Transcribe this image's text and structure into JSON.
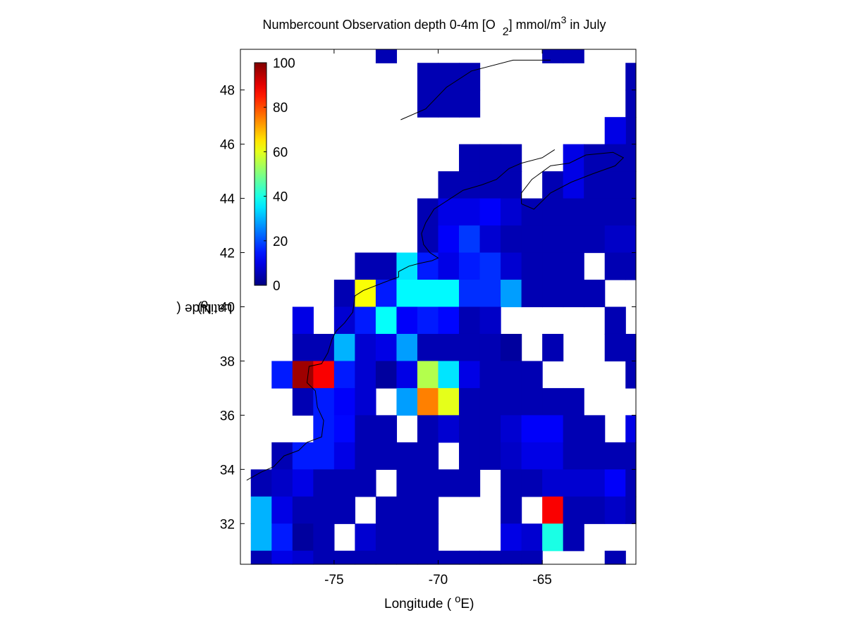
{
  "title": {
    "main": "Numbercount Observation depth 0-4m [O",
    "sub": "2",
    "after": "] mmol/m",
    "sup": "3",
    "end": " in July"
  },
  "axes": {
    "xlabel_pre": "Longitude (",
    "xlabel_deg": "o",
    "xlabel_post": "E)",
    "ylabel_pre": "Latitude (",
    "ylabel_deg": "o",
    "ylabel_post": "N)"
  },
  "chart_data": {
    "type": "heatmap",
    "colormap": "jet",
    "xlim": [
      -79.5,
      -60.5
    ],
    "ylim": [
      30.5,
      49.5
    ],
    "xticks": [
      -75,
      -70,
      -65
    ],
    "yticks": [
      32,
      34,
      36,
      38,
      40,
      42,
      44,
      46,
      48
    ],
    "cell_size_deg": 1,
    "colorbar": {
      "min": 0,
      "max": 100,
      "ticks": [
        0,
        20,
        40,
        60,
        80,
        100
      ],
      "placement": "top-left inside axes"
    },
    "cells": [
      {
        "lon": -73,
        "lat": 49,
        "v": 5
      },
      {
        "lon": -65,
        "lat": 49,
        "v": 5
      },
      {
        "lon": -64,
        "lat": 49,
        "v": 5
      },
      {
        "lon": -71,
        "lat": 48,
        "v": 5
      },
      {
        "lon": -70,
        "lat": 48,
        "v": 5
      },
      {
        "lon": -69,
        "lat": 48,
        "v": 5
      },
      {
        "lon": -61,
        "lat": 48,
        "v": 5
      },
      {
        "lon": -71,
        "lat": 47,
        "v": 5
      },
      {
        "lon": -70,
        "lat": 47,
        "v": 5
      },
      {
        "lon": -69,
        "lat": 47,
        "v": 5
      },
      {
        "lon": -61,
        "lat": 47,
        "v": 5
      },
      {
        "lon": -61,
        "lat": 46,
        "v": 5
      },
      {
        "lon": -62,
        "lat": 46,
        "v": 10
      },
      {
        "lon": -69,
        "lat": 45,
        "v": 5
      },
      {
        "lon": -68,
        "lat": 45,
        "v": 5
      },
      {
        "lon": -67,
        "lat": 45,
        "v": 5
      },
      {
        "lon": -64,
        "lat": 45,
        "v": 10
      },
      {
        "lon": -63,
        "lat": 45,
        "v": 5
      },
      {
        "lon": -62,
        "lat": 45,
        "v": 5
      },
      {
        "lon": -61,
        "lat": 45,
        "v": 5
      },
      {
        "lon": -70,
        "lat": 44,
        "v": 5
      },
      {
        "lon": -69,
        "lat": 44,
        "v": 5
      },
      {
        "lon": -68,
        "lat": 44,
        "v": 5
      },
      {
        "lon": -67,
        "lat": 44,
        "v": 5
      },
      {
        "lon": -65,
        "lat": 44,
        "v": 5
      },
      {
        "lon": -64,
        "lat": 44,
        "v": 10
      },
      {
        "lon": -63,
        "lat": 44,
        "v": 5
      },
      {
        "lon": -62,
        "lat": 44,
        "v": 5
      },
      {
        "lon": -61,
        "lat": 44,
        "v": 5
      },
      {
        "lon": -71,
        "lat": 43,
        "v": 5
      },
      {
        "lon": -70,
        "lat": 43,
        "v": 10
      },
      {
        "lon": -69,
        "lat": 43,
        "v": 10
      },
      {
        "lon": -68,
        "lat": 43,
        "v": 12
      },
      {
        "lon": -67,
        "lat": 43,
        "v": 8
      },
      {
        "lon": -66,
        "lat": 43,
        "v": 5
      },
      {
        "lon": -65,
        "lat": 43,
        "v": 5
      },
      {
        "lon": -64,
        "lat": 43,
        "v": 5
      },
      {
        "lon": -63,
        "lat": 43,
        "v": 5
      },
      {
        "lon": -62,
        "lat": 43,
        "v": 5
      },
      {
        "lon": -61,
        "lat": 43,
        "v": 5
      },
      {
        "lon": -71,
        "lat": 42,
        "v": 5
      },
      {
        "lon": -70,
        "lat": 42,
        "v": 12
      },
      {
        "lon": -69,
        "lat": 42,
        "v": 18
      },
      {
        "lon": -68,
        "lat": 42,
        "v": 8
      },
      {
        "lon": -67,
        "lat": 42,
        "v": 5
      },
      {
        "lon": -66,
        "lat": 42,
        "v": 5
      },
      {
        "lon": -65,
        "lat": 42,
        "v": 5
      },
      {
        "lon": -64,
        "lat": 42,
        "v": 5
      },
      {
        "lon": -63,
        "lat": 42,
        "v": 5
      },
      {
        "lon": -62,
        "lat": 42,
        "v": 7
      },
      {
        "lon": -61,
        "lat": 42,
        "v": 7
      },
      {
        "lon": -74,
        "lat": 41,
        "v": 5
      },
      {
        "lon": -73,
        "lat": 41,
        "v": 5
      },
      {
        "lon": -72,
        "lat": 41,
        "v": 35
      },
      {
        "lon": -71,
        "lat": 41,
        "v": 15
      },
      {
        "lon": -70,
        "lat": 41,
        "v": 10
      },
      {
        "lon": -69,
        "lat": 41,
        "v": 15
      },
      {
        "lon": -68,
        "lat": 41,
        "v": 17
      },
      {
        "lon": -67,
        "lat": 41,
        "v": 8
      },
      {
        "lon": -66,
        "lat": 41,
        "v": 5
      },
      {
        "lon": -65,
        "lat": 41,
        "v": 5
      },
      {
        "lon": -64,
        "lat": 41,
        "v": 5
      },
      {
        "lon": -62,
        "lat": 41,
        "v": 5
      },
      {
        "lon": -61,
        "lat": 41,
        "v": 5
      },
      {
        "lon": -75,
        "lat": 40,
        "v": 5
      },
      {
        "lon": -74,
        "lat": 40,
        "v": 62
      },
      {
        "lon": -73,
        "lat": 40,
        "v": 15
      },
      {
        "lon": -72,
        "lat": 40,
        "v": 37
      },
      {
        "lon": -71,
        "lat": 40,
        "v": 37
      },
      {
        "lon": -70,
        "lat": 40,
        "v": 37
      },
      {
        "lon": -69,
        "lat": 40,
        "v": 17
      },
      {
        "lon": -68,
        "lat": 40,
        "v": 17
      },
      {
        "lon": -67,
        "lat": 40,
        "v": 28
      },
      {
        "lon": -66,
        "lat": 40,
        "v": 5
      },
      {
        "lon": -65,
        "lat": 40,
        "v": 5
      },
      {
        "lon": -64,
        "lat": 40,
        "v": 5
      },
      {
        "lon": -63,
        "lat": 40,
        "v": 5
      },
      {
        "lon": -77,
        "lat": 39,
        "v": 10
      },
      {
        "lon": -75,
        "lat": 39,
        "v": 8
      },
      {
        "lon": -74,
        "lat": 39,
        "v": 15
      },
      {
        "lon": -73,
        "lat": 39,
        "v": 38
      },
      {
        "lon": -72,
        "lat": 39,
        "v": 12
      },
      {
        "lon": -71,
        "lat": 39,
        "v": 15
      },
      {
        "lon": -70,
        "lat": 39,
        "v": 13
      },
      {
        "lon": -69,
        "lat": 39,
        "v": 5
      },
      {
        "lon": -68,
        "lat": 39,
        "v": 7
      },
      {
        "lon": -62,
        "lat": 39,
        "v": 5
      },
      {
        "lon": -77,
        "lat": 38,
        "v": 5
      },
      {
        "lon": -76,
        "lat": 38,
        "v": 5
      },
      {
        "lon": -75,
        "lat": 38,
        "v": 30
      },
      {
        "lon": -74,
        "lat": 38,
        "v": 8
      },
      {
        "lon": -73,
        "lat": 38,
        "v": 10
      },
      {
        "lon": -72,
        "lat": 38,
        "v": 28
      },
      {
        "lon": -71,
        "lat": 38,
        "v": 5
      },
      {
        "lon": -70,
        "lat": 38,
        "v": 5
      },
      {
        "lon": -69,
        "lat": 38,
        "v": 5
      },
      {
        "lon": -68,
        "lat": 38,
        "v": 5
      },
      {
        "lon": -67,
        "lat": 38,
        "v": 3
      },
      {
        "lon": -65,
        "lat": 38,
        "v": 5
      },
      {
        "lon": -62,
        "lat": 38,
        "v": 5
      },
      {
        "lon": -61,
        "lat": 38,
        "v": 5
      },
      {
        "lon": -78,
        "lat": 37,
        "v": 15
      },
      {
        "lon": -77,
        "lat": 37,
        "v": 97
      },
      {
        "lon": -76,
        "lat": 37,
        "v": 88
      },
      {
        "lon": -75,
        "lat": 37,
        "v": 15
      },
      {
        "lon": -74,
        "lat": 37,
        "v": 8
      },
      {
        "lon": -73,
        "lat": 37,
        "v": 3
      },
      {
        "lon": -72,
        "lat": 37,
        "v": 10
      },
      {
        "lon": -71,
        "lat": 37,
        "v": 55
      },
      {
        "lon": -70,
        "lat": 37,
        "v": 35
      },
      {
        "lon": -69,
        "lat": 37,
        "v": 10
      },
      {
        "lon": -68,
        "lat": 37,
        "v": 5
      },
      {
        "lon": -67,
        "lat": 37,
        "v": 5
      },
      {
        "lon": -66,
        "lat": 37,
        "v": 5
      },
      {
        "lon": -61,
        "lat": 37,
        "v": 5
      },
      {
        "lon": -77,
        "lat": 36,
        "v": 5
      },
      {
        "lon": -76,
        "lat": 36,
        "v": 15
      },
      {
        "lon": -75,
        "lat": 36,
        "v": 12
      },
      {
        "lon": -74,
        "lat": 36,
        "v": 8
      },
      {
        "lon": -72,
        "lat": 36,
        "v": 28
      },
      {
        "lon": -71,
        "lat": 36,
        "v": 75
      },
      {
        "lon": -70,
        "lat": 36,
        "v": 60
      },
      {
        "lon": -69,
        "lat": 36,
        "v": 5
      },
      {
        "lon": -68,
        "lat": 36,
        "v": 5
      },
      {
        "lon": -67,
        "lat": 36,
        "v": 5
      },
      {
        "lon": -66,
        "lat": 36,
        "v": 5
      },
      {
        "lon": -65,
        "lat": 36,
        "v": 5
      },
      {
        "lon": -64,
        "lat": 36,
        "v": 5
      },
      {
        "lon": -76,
        "lat": 35,
        "v": 15
      },
      {
        "lon": -75,
        "lat": 35,
        "v": 13
      },
      {
        "lon": -74,
        "lat": 35,
        "v": 5
      },
      {
        "lon": -73,
        "lat": 35,
        "v": 5
      },
      {
        "lon": -71,
        "lat": 35,
        "v": 5
      },
      {
        "lon": -70,
        "lat": 35,
        "v": 8
      },
      {
        "lon": -69,
        "lat": 35,
        "v": 5
      },
      {
        "lon": -68,
        "lat": 35,
        "v": 5
      },
      {
        "lon": -67,
        "lat": 35,
        "v": 8
      },
      {
        "lon": -66,
        "lat": 35,
        "v": 12
      },
      {
        "lon": -65,
        "lat": 35,
        "v": 12
      },
      {
        "lon": -64,
        "lat": 35,
        "v": 5
      },
      {
        "lon": -63,
        "lat": 35,
        "v": 5
      },
      {
        "lon": -61,
        "lat": 35,
        "v": 10
      },
      {
        "lon": -78,
        "lat": 34,
        "v": 5
      },
      {
        "lon": -77,
        "lat": 34,
        "v": 15
      },
      {
        "lon": -76,
        "lat": 34,
        "v": 15
      },
      {
        "lon": -75,
        "lat": 34,
        "v": 10
      },
      {
        "lon": -74,
        "lat": 34,
        "v": 5
      },
      {
        "lon": -73,
        "lat": 34,
        "v": 5
      },
      {
        "lon": -72,
        "lat": 34,
        "v": 5
      },
      {
        "lon": -71,
        "lat": 34,
        "v": 5
      },
      {
        "lon": -69,
        "lat": 34,
        "v": 5
      },
      {
        "lon": -68,
        "lat": 34,
        "v": 5
      },
      {
        "lon": -67,
        "lat": 34,
        "v": 7
      },
      {
        "lon": -66,
        "lat": 34,
        "v": 10
      },
      {
        "lon": -65,
        "lat": 34,
        "v": 10
      },
      {
        "lon": -64,
        "lat": 34,
        "v": 5
      },
      {
        "lon": -63,
        "lat": 34,
        "v": 5
      },
      {
        "lon": -62,
        "lat": 34,
        "v": 5
      },
      {
        "lon": -61,
        "lat": 34,
        "v": 5
      },
      {
        "lon": -79,
        "lat": 33,
        "v": 5
      },
      {
        "lon": -78,
        "lat": 33,
        "v": 7
      },
      {
        "lon": -77,
        "lat": 33,
        "v": 10
      },
      {
        "lon": -76,
        "lat": 33,
        "v": 5
      },
      {
        "lon": -75,
        "lat": 33,
        "v": 5
      },
      {
        "lon": -74,
        "lat": 33,
        "v": 5
      },
      {
        "lon": -72,
        "lat": 33,
        "v": 5
      },
      {
        "lon": -71,
        "lat": 33,
        "v": 5
      },
      {
        "lon": -70,
        "lat": 33,
        "v": 5
      },
      {
        "lon": -69,
        "lat": 33,
        "v": 5
      },
      {
        "lon": -67,
        "lat": 33,
        "v": 5
      },
      {
        "lon": -66,
        "lat": 33,
        "v": 5
      },
      {
        "lon": -65,
        "lat": 33,
        "v": 8
      },
      {
        "lon": -64,
        "lat": 33,
        "v": 8
      },
      {
        "lon": -63,
        "lat": 33,
        "v": 8
      },
      {
        "lon": -62,
        "lat": 33,
        "v": 12
      },
      {
        "lon": -61,
        "lat": 33,
        "v": 5
      },
      {
        "lon": -79,
        "lat": 32,
        "v": 30
      },
      {
        "lon": -78,
        "lat": 32,
        "v": 10
      },
      {
        "lon": -77,
        "lat": 32,
        "v": 5
      },
      {
        "lon": -76,
        "lat": 32,
        "v": 5
      },
      {
        "lon": -75,
        "lat": 32,
        "v": 5
      },
      {
        "lon": -73,
        "lat": 32,
        "v": 5
      },
      {
        "lon": -72,
        "lat": 32,
        "v": 5
      },
      {
        "lon": -71,
        "lat": 32,
        "v": 5
      },
      {
        "lon": -67,
        "lat": 32,
        "v": 5
      },
      {
        "lon": -65,
        "lat": 32,
        "v": 88
      },
      {
        "lon": -64,
        "lat": 32,
        "v": 5
      },
      {
        "lon": -63,
        "lat": 32,
        "v": 5
      },
      {
        "lon": -62,
        "lat": 32,
        "v": 7
      },
      {
        "lon": -61,
        "lat": 32,
        "v": 5
      },
      {
        "lon": -79,
        "lat": 31,
        "v": 30
      },
      {
        "lon": -78,
        "lat": 31,
        "v": 15
      },
      {
        "lon": -77,
        "lat": 31,
        "v": 3
      },
      {
        "lon": -76,
        "lat": 31,
        "v": 5
      },
      {
        "lon": -74,
        "lat": 31,
        "v": 8
      },
      {
        "lon": -73,
        "lat": 31,
        "v": 5
      },
      {
        "lon": -72,
        "lat": 31,
        "v": 5
      },
      {
        "lon": -71,
        "lat": 31,
        "v": 5
      },
      {
        "lon": -67,
        "lat": 31,
        "v": 10
      },
      {
        "lon": -66,
        "lat": 31,
        "v": 8
      },
      {
        "lon": -65,
        "lat": 31,
        "v": 40
      },
      {
        "lon": -64,
        "lat": 31,
        "v": 5
      },
      {
        "lon": -79,
        "lat": 30,
        "v": 5
      },
      {
        "lon": -78,
        "lat": 30,
        "v": 10
      },
      {
        "lon": -77,
        "lat": 30,
        "v": 8
      },
      {
        "lon": -76,
        "lat": 30,
        "v": 5
      },
      {
        "lon": -75,
        "lat": 30,
        "v": 5
      },
      {
        "lon": -74,
        "lat": 30,
        "v": 5
      },
      {
        "lon": -73,
        "lat": 30,
        "v": 5
      },
      {
        "lon": -72,
        "lat": 30,
        "v": 5
      },
      {
        "lon": -71,
        "lat": 30,
        "v": 5
      },
      {
        "lon": -70,
        "lat": 30,
        "v": 5
      },
      {
        "lon": -69,
        "lat": 30,
        "v": 5
      },
      {
        "lon": -68,
        "lat": 30,
        "v": 5
      },
      {
        "lon": -67,
        "lat": 30,
        "v": 5
      },
      {
        "lon": -66,
        "lat": 30,
        "v": 5
      },
      {
        "lon": -62,
        "lat": 30,
        "v": 5
      }
    ]
  }
}
